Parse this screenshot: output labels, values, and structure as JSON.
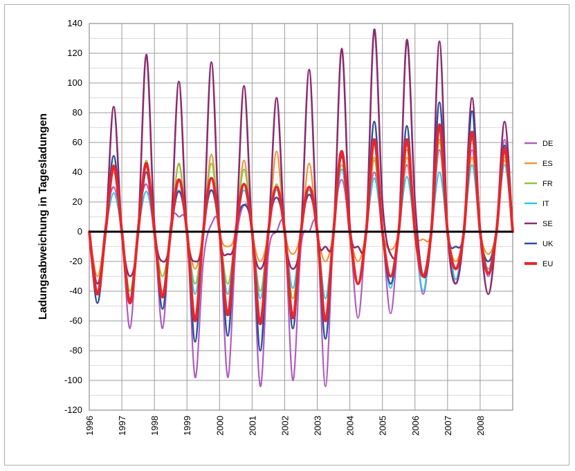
{
  "chart_data": {
    "type": "line",
    "title": "",
    "xlabel": "",
    "ylabel": "Ladungsabweichung in Tagesladungen",
    "ylim": [
      -120,
      140
    ],
    "yticks": [
      140,
      120,
      100,
      80,
      60,
      40,
      20,
      0,
      -20,
      -40,
      -60,
      -80,
      -100,
      -120
    ],
    "xlim": [
      1996,
      2009
    ],
    "xticks": [
      "1996",
      "1997",
      "1998",
      "1999",
      "2000",
      "2001",
      "2002",
      "2003",
      "2004",
      "2005",
      "2006",
      "2007",
      "2008"
    ],
    "grid": true,
    "legend_position": "right",
    "x": [
      1996.0,
      1996.25,
      1996.5,
      1996.75,
      1997.0,
      1997.25,
      1997.5,
      1997.75,
      1998.0,
      1998.25,
      1998.5,
      1998.75,
      1999.0,
      1999.25,
      1999.5,
      1999.75,
      2000.0,
      2000.25,
      2000.5,
      2000.75,
      2001.0,
      2001.25,
      2001.5,
      2001.75,
      2002.0,
      2002.25,
      2002.5,
      2002.75,
      2003.0,
      2003.25,
      2003.5,
      2003.75,
      2004.0,
      2004.25,
      2004.5,
      2004.75,
      2005.0,
      2005.25,
      2005.5,
      2005.75,
      2006.0,
      2006.25,
      2006.5,
      2006.75,
      2007.0,
      2007.25,
      2007.5,
      2007.75,
      2008.0,
      2008.25,
      2008.5,
      2008.75,
      2009.0
    ],
    "series": [
      {
        "name": "DE",
        "color": "#b05cc0",
        "width": 2.2,
        "values": [
          0,
          -42,
          5,
          30,
          0,
          -65,
          5,
          32,
          0,
          -65,
          5,
          10,
          0,
          -98,
          -20,
          5,
          0,
          -98,
          -10,
          18,
          0,
          -104,
          -15,
          0,
          0,
          -100,
          -10,
          0,
          0,
          -104,
          0,
          35,
          0,
          -58,
          0,
          40,
          0,
          -55,
          0,
          45,
          0,
          -42,
          0,
          55,
          0,
          -35,
          0,
          55,
          0,
          -30,
          0,
          62,
          0
        ]
      },
      {
        "name": "ES",
        "color": "#f59232",
        "width": 2.2,
        "values": [
          0,
          -30,
          0,
          40,
          0,
          -40,
          0,
          45,
          0,
          -40,
          0,
          45,
          0,
          -25,
          0,
          52,
          0,
          -10,
          0,
          48,
          0,
          -20,
          0,
          54,
          0,
          -15,
          0,
          46,
          0,
          -20,
          0,
          52,
          0,
          -20,
          0,
          48,
          0,
          -12,
          0,
          50,
          0,
          -5,
          0,
          62,
          0,
          -20,
          0,
          50,
          0,
          -15,
          0,
          48,
          0
        ]
      },
      {
        "name": "FR",
        "color": "#8dc63f",
        "width": 2.2,
        "values": [
          0,
          -35,
          0,
          45,
          0,
          -40,
          0,
          48,
          0,
          -30,
          0,
          46,
          0,
          -35,
          0,
          46,
          0,
          -35,
          0,
          42,
          0,
          -40,
          0,
          32,
          0,
          -45,
          0,
          30,
          0,
          -45,
          0,
          45,
          0,
          -35,
          0,
          50,
          0,
          -30,
          0,
          55,
          0,
          -30,
          0,
          60,
          0,
          -25,
          0,
          62,
          0,
          -20,
          0,
          50,
          0
        ]
      },
      {
        "name": "IT",
        "color": "#33c5ec",
        "width": 2.2,
        "values": [
          0,
          -40,
          0,
          26,
          0,
          -45,
          0,
          27,
          0,
          -42,
          0,
          28,
          0,
          -42,
          0,
          28,
          0,
          -42,
          0,
          28,
          0,
          -45,
          0,
          28,
          0,
          -38,
          0,
          28,
          0,
          -45,
          0,
          42,
          0,
          -35,
          0,
          36,
          0,
          -38,
          0,
          37,
          0,
          -40,
          0,
          40,
          0,
          -32,
          0,
          45,
          0,
          -25,
          0,
          45,
          0
        ]
      },
      {
        "name": "SE",
        "color": "#8b2c6e",
        "width": 2.6,
        "values": [
          0,
          -35,
          0,
          84,
          0,
          -30,
          0,
          119,
          5,
          -20,
          0,
          101,
          0,
          -20,
          0,
          114,
          0,
          -15,
          0,
          98,
          0,
          -25,
          0,
          90,
          0,
          -25,
          0,
          109,
          0,
          -10,
          0,
          123,
          5,
          -10,
          0,
          136,
          20,
          -15,
          0,
          129,
          20,
          -30,
          0,
          128,
          0,
          -35,
          0,
          90,
          0,
          -42,
          0,
          74,
          0
        ]
      },
      {
        "name": "UK",
        "color": "#2f4f9e",
        "width": 2.6,
        "values": [
          0,
          -48,
          0,
          51,
          0,
          -45,
          0,
          40,
          0,
          -52,
          0,
          27,
          0,
          -74,
          0,
          28,
          0,
          -70,
          0,
          18,
          0,
          -80,
          0,
          23,
          0,
          -65,
          0,
          25,
          0,
          -72,
          0,
          50,
          0,
          -35,
          0,
          74,
          0,
          -35,
          0,
          71,
          0,
          -30,
          0,
          87,
          0,
          -10,
          0,
          81,
          0,
          -20,
          0,
          58,
          0
        ]
      },
      {
        "name": "EU",
        "color": "#e8262a",
        "width": 4,
        "values": [
          0,
          -42,
          0,
          44,
          0,
          -48,
          0,
          46,
          0,
          -44,
          0,
          35,
          0,
          -60,
          0,
          36,
          0,
          -56,
          0,
          32,
          0,
          -62,
          0,
          30,
          0,
          -58,
          0,
          30,
          0,
          -60,
          0,
          54,
          0,
          -35,
          0,
          62,
          0,
          -30,
          0,
          62,
          0,
          -30,
          0,
          72,
          0,
          -25,
          0,
          67,
          0,
          -28,
          0,
          56,
          0
        ]
      }
    ]
  }
}
